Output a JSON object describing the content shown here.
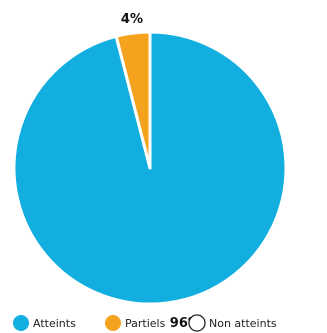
{
  "chart_data": {
    "type": "pie",
    "title": "",
    "legend_position": "bottom",
    "slices": [
      {
        "name": "Atteints",
        "value": 96,
        "label": "96%",
        "color": "#12aee0"
      },
      {
        "name": "Partiels",
        "value": 4,
        "label": "4%",
        "color": "#f5a31f"
      },
      {
        "name": "Non atteints",
        "value": 0,
        "label": "",
        "color": "#ffffff"
      }
    ]
  }
}
